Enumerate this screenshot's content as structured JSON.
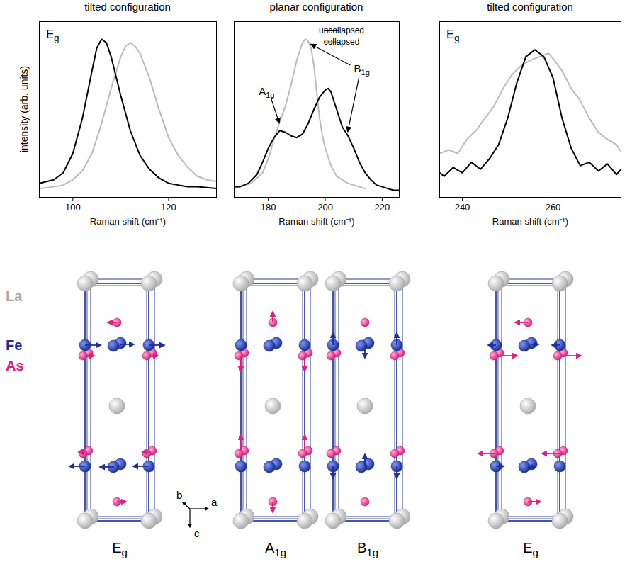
{
  "chart_data": [
    {
      "type": "line",
      "title": "tilted configuration",
      "x_label": "Raman shift (cm⁻¹)",
      "y_label": "intensity (arb. units)",
      "xlim": [
        93,
        130
      ],
      "xticks": [
        100,
        120
      ],
      "ylim": [
        0,
        1
      ],
      "yticks": [],
      "tick_labels": "x",
      "annotations": [
        {
          "text": "E",
          "sub": "g"
        }
      ],
      "series": [
        {
          "color": "#000000",
          "x": [
            93,
            96,
            98,
            100,
            102,
            104,
            105,
            106,
            107,
            108,
            110,
            112,
            114,
            116,
            118,
            120,
            122,
            124,
            126,
            128,
            130
          ],
          "values": [
            0.08,
            0.1,
            0.14,
            0.25,
            0.45,
            0.72,
            0.85,
            0.9,
            0.88,
            0.8,
            0.58,
            0.38,
            0.24,
            0.16,
            0.11,
            0.08,
            0.07,
            0.06,
            0.06,
            0.055,
            0.05
          ]
        },
        {
          "color": "#bbbbbb",
          "x": [
            93,
            96,
            98,
            100,
            102,
            104,
            106,
            108,
            110,
            111,
            112,
            113,
            114,
            116,
            118,
            120,
            122,
            124,
            126,
            128,
            130
          ],
          "values": [
            0.05,
            0.06,
            0.07,
            0.1,
            0.15,
            0.25,
            0.42,
            0.62,
            0.8,
            0.86,
            0.88,
            0.86,
            0.82,
            0.68,
            0.5,
            0.34,
            0.24,
            0.17,
            0.12,
            0.1,
            0.09
          ]
        }
      ]
    },
    {
      "type": "line",
      "title": "planar configuration",
      "x_label": "Raman shift (cm⁻¹)",
      "xlim": [
        168,
        226
      ],
      "xticks": [
        180,
        200,
        220
      ],
      "ylim": [
        0,
        1
      ],
      "yticks": [],
      "tick_labels": "x",
      "legend": "top-right",
      "annotations": [
        {
          "text": "A",
          "sub": "1g",
          "targets": [
            {
              "x": 184,
              "y": 0.42
            }
          ]
        },
        {
          "text": "B",
          "sub": "1g",
          "targets": [
            {
              "x": 195,
              "y": 0.87
            },
            {
              "x": 208,
              "y": 0.37
            }
          ]
        }
      ],
      "series": [
        {
          "name": "uncollapsed",
          "color": "#000000",
          "x": [
            168,
            170,
            173,
            176,
            178,
            180,
            182,
            184,
            186,
            188,
            190,
            192,
            194,
            196,
            198,
            200,
            201,
            202,
            204,
            206,
            208,
            210,
            212,
            214,
            216,
            218,
            220,
            222,
            224,
            226
          ],
          "values": [
            0.06,
            0.06,
            0.08,
            0.13,
            0.2,
            0.28,
            0.34,
            0.38,
            0.37,
            0.35,
            0.34,
            0.36,
            0.42,
            0.5,
            0.57,
            0.61,
            0.62,
            0.6,
            0.5,
            0.4,
            0.35,
            0.28,
            0.2,
            0.14,
            0.1,
            0.07,
            0.06,
            0.05,
            0.04,
            0.04
          ]
        },
        {
          "name": "collapsed",
          "color": "#bbbbbb",
          "x": [
            168,
            170,
            174,
            178,
            180,
            182,
            184,
            186,
            188,
            190,
            192,
            193,
            194,
            195,
            196,
            197,
            198,
            199,
            200,
            202,
            204,
            206,
            208,
            210,
            212,
            214
          ],
          "values": [
            0.05,
            0.06,
            0.08,
            0.14,
            0.22,
            0.33,
            0.43,
            0.52,
            0.64,
            0.78,
            0.88,
            0.9,
            0.89,
            0.85,
            0.75,
            0.6,
            0.45,
            0.35,
            0.28,
            0.18,
            0.12,
            0.1,
            0.08,
            0.07,
            0.06,
            0.05
          ]
        }
      ]
    },
    {
      "type": "line",
      "title": "tilted configuration",
      "x_label": "Raman shift (cm⁻¹)",
      "xlim": [
        235,
        275
      ],
      "xticks": [
        240,
        260
      ],
      "ylim": [
        0,
        1
      ],
      "yticks": [],
      "tick_labels": "x",
      "annotations": [
        {
          "text": "E",
          "sub": "g"
        }
      ],
      "series": [
        {
          "color": "#000000",
          "x": [
            235,
            236,
            238,
            240,
            242,
            244,
            246,
            248,
            250,
            252,
            254,
            256,
            258,
            260,
            262,
            264,
            266,
            268,
            270,
            272,
            274,
            275
          ],
          "values": [
            0.14,
            0.12,
            0.17,
            0.14,
            0.2,
            0.16,
            0.22,
            0.3,
            0.45,
            0.65,
            0.8,
            0.84,
            0.8,
            0.68,
            0.45,
            0.28,
            0.18,
            0.2,
            0.15,
            0.19,
            0.13,
            0.16
          ]
        },
        {
          "color": "#bbbbbb",
          "x": [
            235,
            237,
            239,
            241,
            243,
            245,
            247,
            249,
            251,
            253,
            255,
            257,
            259,
            260,
            262,
            264,
            266,
            268,
            270,
            272,
            274,
            275
          ],
          "values": [
            0.25,
            0.27,
            0.25,
            0.33,
            0.38,
            0.45,
            0.52,
            0.62,
            0.7,
            0.75,
            0.78,
            0.8,
            0.82,
            0.79,
            0.72,
            0.62,
            0.55,
            0.45,
            0.37,
            0.33,
            0.3,
            0.26
          ]
        }
      ]
    }
  ],
  "diagram": {
    "elements": [
      {
        "label": "La"
      },
      {
        "label": "Fe"
      },
      {
        "label": "As"
      }
    ],
    "axes": [
      "b",
      "a",
      "c"
    ],
    "modes": [
      {
        "text": "E",
        "sub": "g"
      },
      {
        "text": "A",
        "sub": "1g"
      },
      {
        "text": "B",
        "sub": "1g"
      },
      {
        "text": "E",
        "sub": "g"
      }
    ]
  }
}
